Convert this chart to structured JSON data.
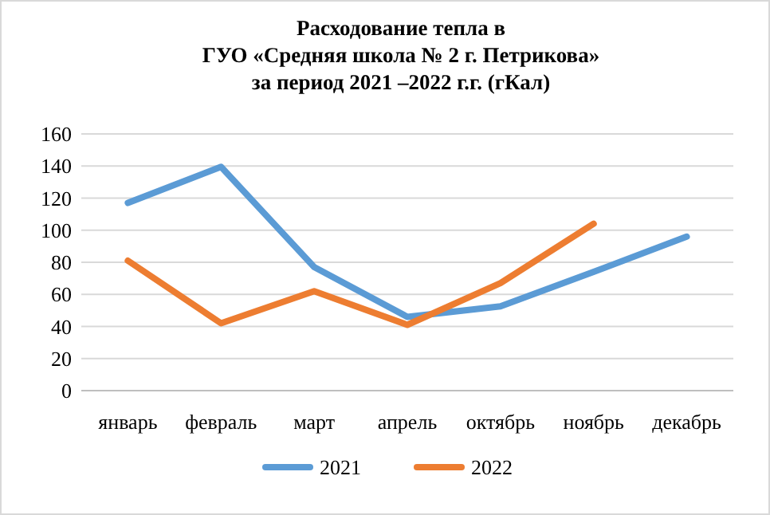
{
  "chart_data": {
    "type": "line",
    "title": "Расходование тепла в\nГУО «Средняя школа № 2 г. Петрикова»\nза период 2021 –2022 г.г. (гКал)",
    "categories": [
      "январь",
      "февраль",
      "март",
      "апрель",
      "октябрь",
      "ноябрь",
      "декабрь"
    ],
    "series": [
      {
        "name": "2021",
        "color": "#5b9bd5",
        "values": [
          117,
          139.5,
          77,
          46,
          52.5,
          74,
          96
        ]
      },
      {
        "name": "2022",
        "color": "#ed7d31",
        "values": [
          81,
          42,
          62,
          41,
          67,
          104,
          null
        ]
      }
    ],
    "ylim": [
      0,
      160
    ],
    "yticks": [
      0,
      20,
      40,
      60,
      80,
      100,
      120,
      140,
      160
    ],
    "grid": "y",
    "legend": "bottom",
    "marker": "none",
    "line_style": "solid"
  }
}
